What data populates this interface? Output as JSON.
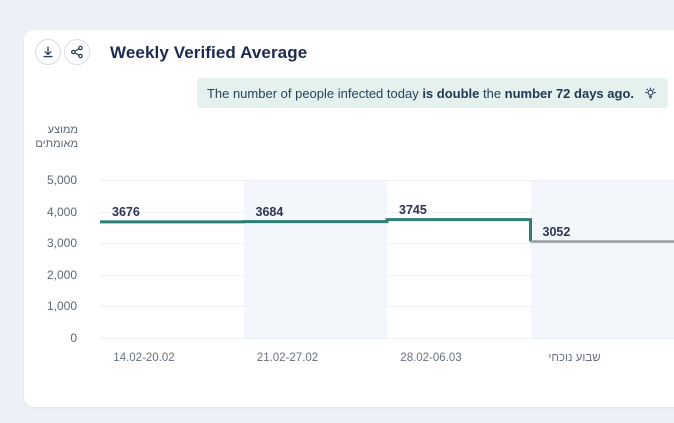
{
  "header": {
    "title": "Weekly Verified Average",
    "download_button": "download",
    "share_button": "share"
  },
  "note": {
    "segment_regular_1": "The number of people infected today ",
    "segment_bold_1": "is double",
    "segment_regular_2": " the ",
    "segment_bold_2": "number 72 days ago.",
    "icon": "lightbulb-icon"
  },
  "chart_data": {
    "type": "line",
    "subtype": "step",
    "title": "Weekly Verified Average",
    "categories": [
      "14.02-20.02",
      "21.02-27.02",
      "28.02-06.03",
      "שבוע נוכחי"
    ],
    "values": [
      3676,
      3684,
      3745,
      3052
    ],
    "current_week_index": 3,
    "ylabel_line1": "ממוצע",
    "ylabel_line2": "מאומתים",
    "ytick_labels": [
      "5,000",
      "4,000",
      "3,000",
      "2,000",
      "1,000",
      "0"
    ],
    "ytick_values": [
      5000,
      4000,
      3000,
      2000,
      1000,
      0
    ],
    "ylim": [
      0,
      5000
    ],
    "grid": true,
    "legend": "none",
    "alternating_bands": true,
    "colors": {
      "line": "#2e7e76",
      "current_week_line": "#9b9ea3",
      "band": "#f3f6fa",
      "grid": "#eef1f6",
      "data_label": "#2e3750"
    }
  }
}
